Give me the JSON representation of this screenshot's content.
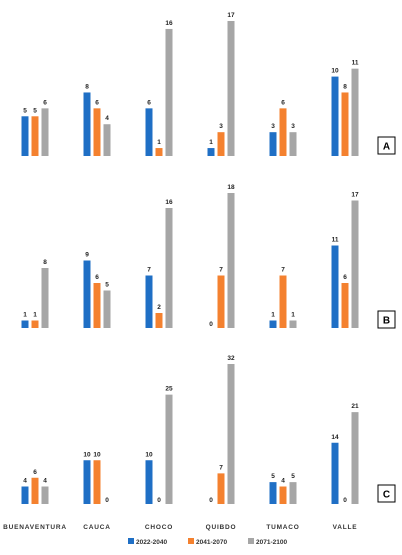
{
  "chart_data": [
    {
      "type": "bar",
      "panel_label": "A",
      "categories": [
        "BUENAVENTURA",
        "CAUCA",
        "CHOCO",
        "QUIBDO",
        "TUMACO",
        "VALLE"
      ],
      "series": [
        {
          "name": "2022-2040",
          "values": [
            5,
            8,
            6,
            1,
            3,
            10
          ]
        },
        {
          "name": "2041-2070",
          "values": [
            5,
            6,
            1,
            3,
            6,
            8
          ]
        },
        {
          "name": "2071-2100",
          "values": [
            6,
            4,
            16,
            17,
            3,
            11
          ]
        }
      ],
      "ylim": [
        0,
        17
      ]
    },
    {
      "type": "bar",
      "panel_label": "B",
      "categories": [
        "BUENAVENTURA",
        "CAUCA",
        "CHOCO",
        "QUIBDO",
        "TUMACO",
        "VALLE"
      ],
      "series": [
        {
          "name": "2022-2040",
          "values": [
            1,
            9,
            7,
            0,
            1,
            11
          ]
        },
        {
          "name": "2041-2070",
          "values": [
            1,
            6,
            2,
            7,
            7,
            6
          ]
        },
        {
          "name": "2071-2100",
          "values": [
            8,
            5,
            16,
            18,
            1,
            17
          ]
        }
      ],
      "ylim": [
        0,
        18
      ]
    },
    {
      "type": "bar",
      "panel_label": "C",
      "categories": [
        "BUENAVENTURA",
        "CAUCA",
        "CHOCO",
        "QUIBDO",
        "TUMACO",
        "VALLE"
      ],
      "series": [
        {
          "name": "2022-2040",
          "values": [
            4,
            10,
            10,
            0,
            5,
            14
          ]
        },
        {
          "name": "2041-2070",
          "values": [
            6,
            10,
            0,
            7,
            4,
            0
          ]
        },
        {
          "name": "2071-2100",
          "values": [
            4,
            0,
            25,
            32,
            5,
            21
          ]
        }
      ],
      "ylim": [
        0,
        32
      ]
    }
  ],
  "categories": [
    "BUENAVENTURA",
    "CAUCA",
    "CHOCO",
    "QUIBDO",
    "TUMACO",
    "VALLE"
  ],
  "legend": [
    {
      "name": "2022-2040",
      "color": "#1F6FC5"
    },
    {
      "name": "2041-2070",
      "color": "#F4812F"
    },
    {
      "name": "2071-2100",
      "color": "#A6A6A6"
    }
  ],
  "colors": [
    "#1F6FC5",
    "#F4812F",
    "#A6A6A6"
  ]
}
